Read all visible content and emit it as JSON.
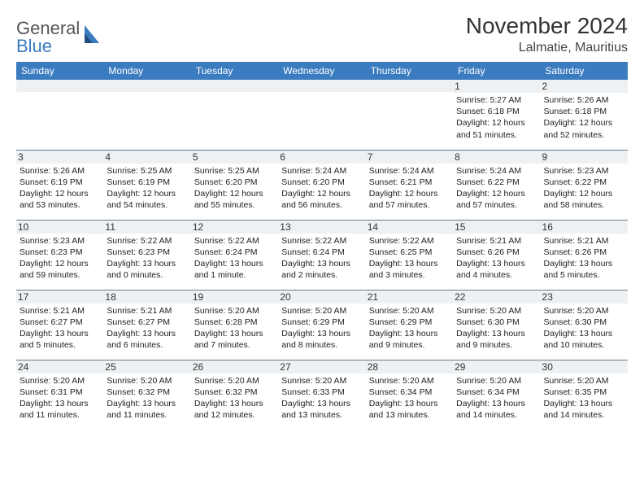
{
  "brand": {
    "word1": "General",
    "word2": "Blue"
  },
  "title": "November 2024",
  "location": "Lalmatie, Mauritius",
  "colors": {
    "header_bg": "#3b7bbf",
    "header_fg": "#ffffff",
    "daynum_bg": "#eef1f3",
    "rule": "#6a7a88",
    "logo_gray": "#555555",
    "logo_blue": "#3b7bbf"
  },
  "weekdays": [
    "Sunday",
    "Monday",
    "Tuesday",
    "Wednesday",
    "Thursday",
    "Friday",
    "Saturday"
  ],
  "weeks": [
    [
      {
        "n": "",
        "sr": "",
        "ss": "",
        "dl": ""
      },
      {
        "n": "",
        "sr": "",
        "ss": "",
        "dl": ""
      },
      {
        "n": "",
        "sr": "",
        "ss": "",
        "dl": ""
      },
      {
        "n": "",
        "sr": "",
        "ss": "",
        "dl": ""
      },
      {
        "n": "",
        "sr": "",
        "ss": "",
        "dl": ""
      },
      {
        "n": "1",
        "sr": "Sunrise: 5:27 AM",
        "ss": "Sunset: 6:18 PM",
        "dl": "Daylight: 12 hours and 51 minutes."
      },
      {
        "n": "2",
        "sr": "Sunrise: 5:26 AM",
        "ss": "Sunset: 6:18 PM",
        "dl": "Daylight: 12 hours and 52 minutes."
      }
    ],
    [
      {
        "n": "3",
        "sr": "Sunrise: 5:26 AM",
        "ss": "Sunset: 6:19 PM",
        "dl": "Daylight: 12 hours and 53 minutes."
      },
      {
        "n": "4",
        "sr": "Sunrise: 5:25 AM",
        "ss": "Sunset: 6:19 PM",
        "dl": "Daylight: 12 hours and 54 minutes."
      },
      {
        "n": "5",
        "sr": "Sunrise: 5:25 AM",
        "ss": "Sunset: 6:20 PM",
        "dl": "Daylight: 12 hours and 55 minutes."
      },
      {
        "n": "6",
        "sr": "Sunrise: 5:24 AM",
        "ss": "Sunset: 6:20 PM",
        "dl": "Daylight: 12 hours and 56 minutes."
      },
      {
        "n": "7",
        "sr": "Sunrise: 5:24 AM",
        "ss": "Sunset: 6:21 PM",
        "dl": "Daylight: 12 hours and 57 minutes."
      },
      {
        "n": "8",
        "sr": "Sunrise: 5:24 AM",
        "ss": "Sunset: 6:22 PM",
        "dl": "Daylight: 12 hours and 57 minutes."
      },
      {
        "n": "9",
        "sr": "Sunrise: 5:23 AM",
        "ss": "Sunset: 6:22 PM",
        "dl": "Daylight: 12 hours and 58 minutes."
      }
    ],
    [
      {
        "n": "10",
        "sr": "Sunrise: 5:23 AM",
        "ss": "Sunset: 6:23 PM",
        "dl": "Daylight: 12 hours and 59 minutes."
      },
      {
        "n": "11",
        "sr": "Sunrise: 5:22 AM",
        "ss": "Sunset: 6:23 PM",
        "dl": "Daylight: 13 hours and 0 minutes."
      },
      {
        "n": "12",
        "sr": "Sunrise: 5:22 AM",
        "ss": "Sunset: 6:24 PM",
        "dl": "Daylight: 13 hours and 1 minute."
      },
      {
        "n": "13",
        "sr": "Sunrise: 5:22 AM",
        "ss": "Sunset: 6:24 PM",
        "dl": "Daylight: 13 hours and 2 minutes."
      },
      {
        "n": "14",
        "sr": "Sunrise: 5:22 AM",
        "ss": "Sunset: 6:25 PM",
        "dl": "Daylight: 13 hours and 3 minutes."
      },
      {
        "n": "15",
        "sr": "Sunrise: 5:21 AM",
        "ss": "Sunset: 6:26 PM",
        "dl": "Daylight: 13 hours and 4 minutes."
      },
      {
        "n": "16",
        "sr": "Sunrise: 5:21 AM",
        "ss": "Sunset: 6:26 PM",
        "dl": "Daylight: 13 hours and 5 minutes."
      }
    ],
    [
      {
        "n": "17",
        "sr": "Sunrise: 5:21 AM",
        "ss": "Sunset: 6:27 PM",
        "dl": "Daylight: 13 hours and 5 minutes."
      },
      {
        "n": "18",
        "sr": "Sunrise: 5:21 AM",
        "ss": "Sunset: 6:27 PM",
        "dl": "Daylight: 13 hours and 6 minutes."
      },
      {
        "n": "19",
        "sr": "Sunrise: 5:20 AM",
        "ss": "Sunset: 6:28 PM",
        "dl": "Daylight: 13 hours and 7 minutes."
      },
      {
        "n": "20",
        "sr": "Sunrise: 5:20 AM",
        "ss": "Sunset: 6:29 PM",
        "dl": "Daylight: 13 hours and 8 minutes."
      },
      {
        "n": "21",
        "sr": "Sunrise: 5:20 AM",
        "ss": "Sunset: 6:29 PM",
        "dl": "Daylight: 13 hours and 9 minutes."
      },
      {
        "n": "22",
        "sr": "Sunrise: 5:20 AM",
        "ss": "Sunset: 6:30 PM",
        "dl": "Daylight: 13 hours and 9 minutes."
      },
      {
        "n": "23",
        "sr": "Sunrise: 5:20 AM",
        "ss": "Sunset: 6:30 PM",
        "dl": "Daylight: 13 hours and 10 minutes."
      }
    ],
    [
      {
        "n": "24",
        "sr": "Sunrise: 5:20 AM",
        "ss": "Sunset: 6:31 PM",
        "dl": "Daylight: 13 hours and 11 minutes."
      },
      {
        "n": "25",
        "sr": "Sunrise: 5:20 AM",
        "ss": "Sunset: 6:32 PM",
        "dl": "Daylight: 13 hours and 11 minutes."
      },
      {
        "n": "26",
        "sr": "Sunrise: 5:20 AM",
        "ss": "Sunset: 6:32 PM",
        "dl": "Daylight: 13 hours and 12 minutes."
      },
      {
        "n": "27",
        "sr": "Sunrise: 5:20 AM",
        "ss": "Sunset: 6:33 PM",
        "dl": "Daylight: 13 hours and 13 minutes."
      },
      {
        "n": "28",
        "sr": "Sunrise: 5:20 AM",
        "ss": "Sunset: 6:34 PM",
        "dl": "Daylight: 13 hours and 13 minutes."
      },
      {
        "n": "29",
        "sr": "Sunrise: 5:20 AM",
        "ss": "Sunset: 6:34 PM",
        "dl": "Daylight: 13 hours and 14 minutes."
      },
      {
        "n": "30",
        "sr": "Sunrise: 5:20 AM",
        "ss": "Sunset: 6:35 PM",
        "dl": "Daylight: 13 hours and 14 minutes."
      }
    ]
  ]
}
